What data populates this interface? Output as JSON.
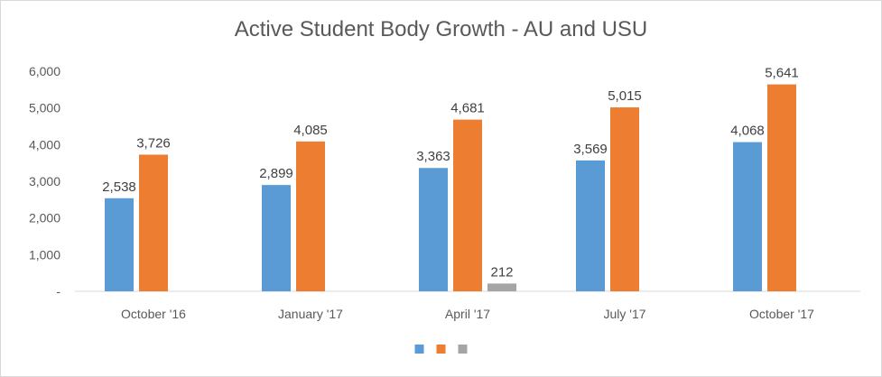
{
  "chart_data": {
    "type": "bar",
    "title": "Active Student Body Growth - AU and USU",
    "xlabel": "",
    "ylabel": "",
    "categories": [
      "October '16",
      "January '17",
      "April '17",
      "July '17",
      "October '17"
    ],
    "series": [
      {
        "color": "#5b9bd5",
        "values": [
          2538,
          2899,
          3363,
          3569,
          4068
        ]
      },
      {
        "color": "#ed7d31",
        "values": [
          3726,
          4085,
          4681,
          5015,
          5641
        ]
      },
      {
        "color": "#a5a5a5",
        "values": [
          null,
          null,
          212,
          null,
          null
        ]
      }
    ],
    "data_labels": [
      [
        "2,538",
        "2,899",
        "3,363",
        "3,569",
        "4,068"
      ],
      [
        "3,726",
        "4,085",
        "4,681",
        "5,015",
        "5,641"
      ],
      [
        "",
        "",
        "212",
        "",
        ""
      ]
    ],
    "ylim": [
      0,
      6000
    ],
    "y_ticks": [
      0,
      1000,
      2000,
      3000,
      4000,
      5000,
      6000
    ],
    "y_tick_labels": [
      "-",
      "1,000",
      "2,000",
      "3,000",
      "4,000",
      "5,000",
      "6,000"
    ],
    "grid": false,
    "legend_position": "bottom"
  }
}
